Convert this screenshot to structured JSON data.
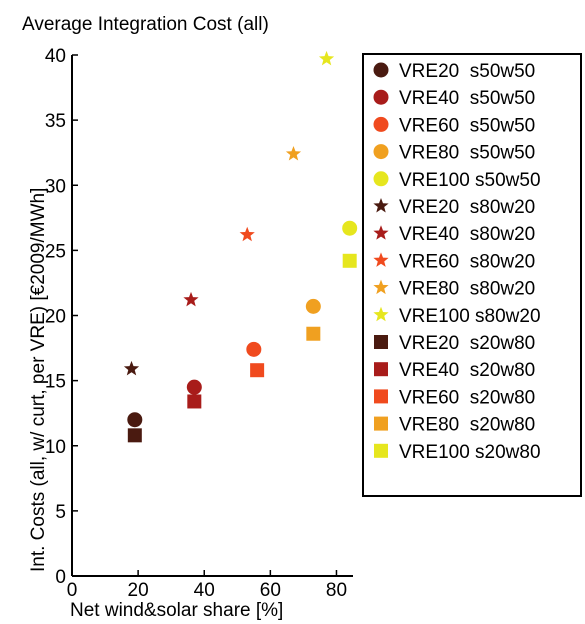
{
  "chart_data": {
    "type": "scatter",
    "title": "Average Integration Cost (all)",
    "xlabel": "Net wind&solar share [%]",
    "ylabel": "Int. Costs (all, w/ curt, per VRE) [€2009/MWh]",
    "xlim": [
      0,
      85
    ],
    "ylim": [
      0,
      40
    ],
    "xticks": [
      0,
      20,
      40,
      60,
      80
    ],
    "yticks": [
      0,
      5,
      10,
      15,
      20,
      25,
      30,
      35,
      40
    ],
    "grid": false,
    "legend_position": "right",
    "series": [
      {
        "name": "VRE20 s50w50",
        "marker": "circle",
        "color": "#4a1a10",
        "x": [
          19
        ],
        "y": [
          12.0
        ]
      },
      {
        "name": "VRE40 s50w50",
        "marker": "circle",
        "color": "#a81c1a",
        "x": [
          37
        ],
        "y": [
          14.5
        ]
      },
      {
        "name": "VRE60 s50w50",
        "marker": "circle",
        "color": "#f04a1e",
        "x": [
          55
        ],
        "y": [
          17.4
        ]
      },
      {
        "name": "VRE80 s50w50",
        "marker": "circle",
        "color": "#f0a020",
        "x": [
          73
        ],
        "y": [
          20.7
        ]
      },
      {
        "name": "VRE100 s50w50",
        "marker": "circle",
        "color": "#e6e61e",
        "x": [
          84
        ],
        "y": [
          26.7
        ]
      },
      {
        "name": "VRE20 s80w20",
        "marker": "star",
        "color": "#4a1a10",
        "x": [
          18
        ],
        "y": [
          15.9
        ]
      },
      {
        "name": "VRE40 s80w20",
        "marker": "star",
        "color": "#a81c1a",
        "x": [
          36
        ],
        "y": [
          21.2
        ]
      },
      {
        "name": "VRE60 s80w20",
        "marker": "star",
        "color": "#f04a1e",
        "x": [
          53
        ],
        "y": [
          26.2
        ]
      },
      {
        "name": "VRE80 s80w20",
        "marker": "star",
        "color": "#f0a020",
        "x": [
          67
        ],
        "y": [
          32.4
        ]
      },
      {
        "name": "VRE100 s80w20",
        "marker": "star",
        "color": "#e6e61e",
        "x": [
          77
        ],
        "y": [
          39.7
        ]
      },
      {
        "name": "VRE20 s20w80",
        "marker": "square",
        "color": "#4a1a10",
        "x": [
          19
        ],
        "y": [
          10.8
        ]
      },
      {
        "name": "VRE40 s20w80",
        "marker": "square",
        "color": "#a81c1a",
        "x": [
          37
        ],
        "y": [
          13.4
        ]
      },
      {
        "name": "VRE60 s20w80",
        "marker": "square",
        "color": "#f04a1e",
        "x": [
          56
        ],
        "y": [
          15.8
        ]
      },
      {
        "name": "VRE80 s20w80",
        "marker": "square",
        "color": "#f0a020",
        "x": [
          73
        ],
        "y": [
          18.6
        ]
      },
      {
        "name": "VRE100 s20w80",
        "marker": "square",
        "color": "#e6e61e",
        "x": [
          84
        ],
        "y": [
          24.2
        ]
      }
    ]
  }
}
